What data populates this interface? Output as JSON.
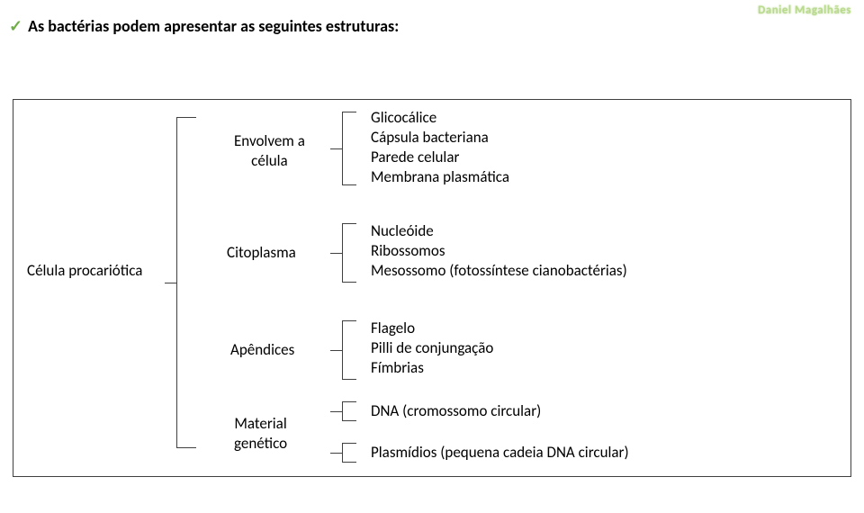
{
  "watermark": "Daniel Magalhães",
  "title": "As bactérias podem apresentar as seguintes estruturas:",
  "checkmark": "✓",
  "root": "Célula procariótica",
  "colors": {
    "border": "#404040",
    "check": "#70ad47",
    "watermark": "#b9d98e",
    "bg": "#ffffff"
  },
  "categories": {
    "c1": {
      "line1": "Envolvem a",
      "line2": "célula"
    },
    "c2": "Citoplasma",
    "c3": "Apêndices",
    "c4": {
      "line1": "Material",
      "line2": "genético"
    }
  },
  "items": {
    "i1": "Glicocálice",
    "i2": "Cápsula bacteriana",
    "i3": "Parede celular",
    "i4": "Membrana plasmática",
    "i5": "Nucleóide",
    "i6": "Ribossomos",
    "i7": "Mesossomo (fotossíntese cianobactérias)",
    "i8": "Flagelo",
    "i9": "Pilli de conjungação",
    "i10": "Fímbrias",
    "i11": "DNA (cromossomo circular)",
    "i12": "Plasmídios (pequena cadeia DNA circular)"
  }
}
